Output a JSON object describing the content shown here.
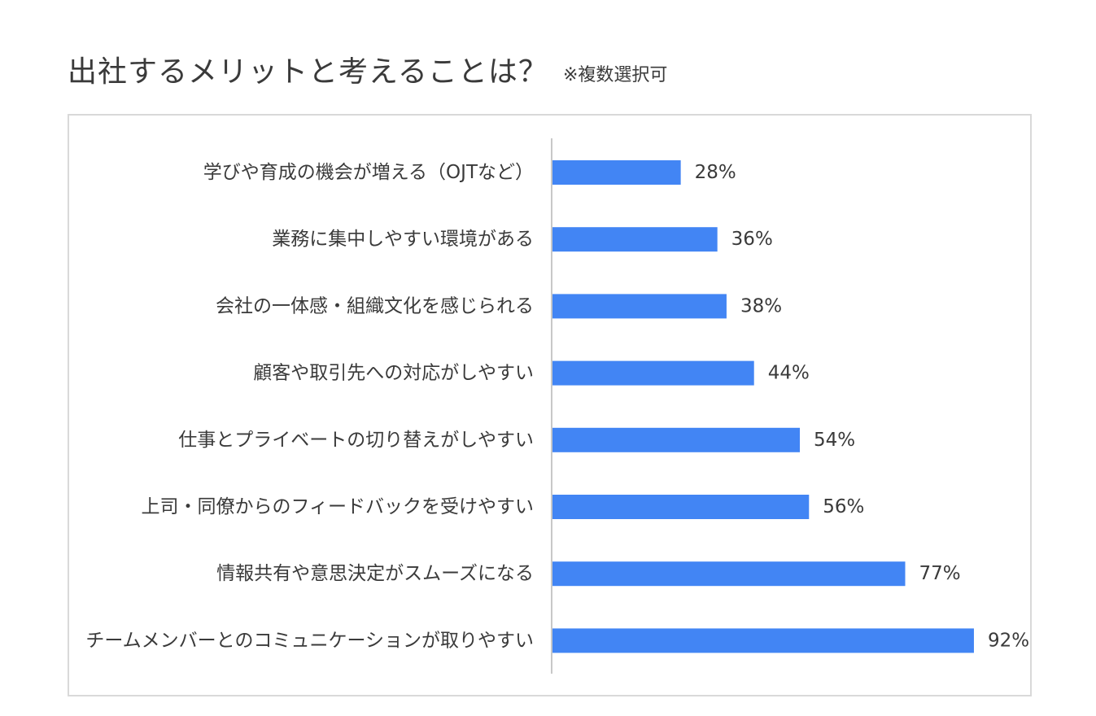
{
  "header": {
    "title": "出社するメリットと考えることは？",
    "note": "※複数選択可"
  },
  "colors": {
    "bar": "#4285f4",
    "axis": "#c8c8c8",
    "frame": "#d9d9d9",
    "text": "#3a3a3a"
  },
  "chart_data": {
    "type": "bar",
    "orientation": "horizontal",
    "title": "出社するメリットと考えることは？",
    "subtitle": "※複数選択可",
    "xlabel": "",
    "ylabel": "",
    "value_suffix": "%",
    "xlim": [
      0,
      100
    ],
    "grid": false,
    "legend": "none",
    "categories": [
      "学びや育成の機会が増える（OJTなど）",
      "業務に集中しやすい環境がある",
      "会社の一体感・組織文化を感じられる",
      "顧客や取引先への対応がしやすい",
      "仕事とプライベートの切り替えがしやすい",
      "上司・同僚からのフィードバックを受けやすい",
      "情報共有や意思決定がスムーズになる",
      "チームメンバーとのコミュニケーションが取りやすい"
    ],
    "values": [
      28,
      36,
      38,
      44,
      54,
      56,
      77,
      92
    ]
  }
}
